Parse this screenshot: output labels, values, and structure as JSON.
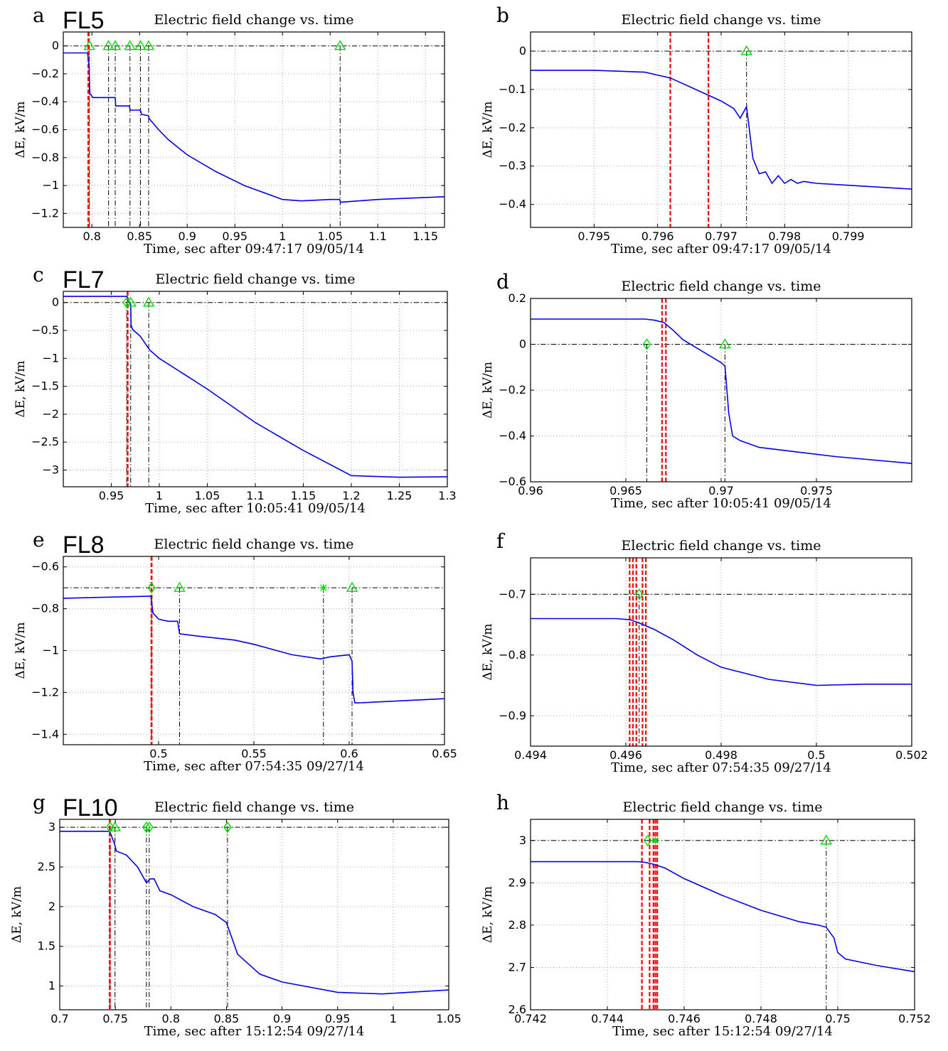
{
  "colors": {
    "signal": "#0000ee",
    "marker": "#00dd00",
    "red_marker": "#ff0000",
    "reference": "#000000",
    "grid": "#999999"
  },
  "chart_data": [
    {
      "panel": "a",
      "flash": "FL5",
      "type": "line",
      "title": "Electric field change vs. time",
      "xlabel": "Time, sec after 09:47:17  09/05/14",
      "ylabel": "ΔE,  kV/m",
      "xlim": [
        0.77,
        1.17
      ],
      "ylim": [
        -1.3,
        0.1
      ],
      "xticks": [
        0.8,
        0.85,
        0.9,
        0.95,
        1,
        1.05,
        1.1,
        1.15
      ],
      "xtick_labels": [
        "0.8",
        "0.85",
        "0.9",
        "0.95",
        "1",
        "1.05",
        "1.1",
        "1.15"
      ],
      "yticks": [
        -1.2,
        -1,
        -0.8,
        -0.6,
        -0.4,
        -0.2,
        0
      ],
      "ytick_labels": [
        "−1.2",
        "−1",
        "−0.8",
        "−0.6",
        "−0.4",
        "−0.2",
        "0"
      ],
      "grid": true,
      "reference_y": 0,
      "red_lines": [
        0.7962,
        0.7968
      ],
      "black_lines": [
        0.7974,
        0.8175,
        0.8245,
        0.84,
        0.851,
        0.8595,
        1.0605
      ],
      "markers": [
        {
          "x": 0.7974,
          "y": 0,
          "shape": "triangle"
        },
        {
          "x": 0.8175,
          "y": 0,
          "shape": "triangle"
        },
        {
          "x": 0.8245,
          "y": 0,
          "shape": "triangle"
        },
        {
          "x": 0.84,
          "y": 0,
          "shape": "triangle"
        },
        {
          "x": 0.851,
          "y": 0,
          "shape": "triangle"
        },
        {
          "x": 0.8595,
          "y": 0,
          "shape": "triangle"
        },
        {
          "x": 1.0605,
          "y": 0,
          "shape": "triangle"
        }
      ],
      "x": [
        0.77,
        0.7955,
        0.7972,
        0.7976,
        0.798,
        0.801,
        0.81,
        0.8245,
        0.825,
        0.83,
        0.8395,
        0.84,
        0.845,
        0.851,
        0.852,
        0.8595,
        0.86,
        0.87,
        0.88,
        0.9,
        0.93,
        0.96,
        1.0,
        1.02,
        1.05,
        1.06,
        1.061,
        1.1,
        1.17
      ],
      "y": [
        -0.05,
        -0.05,
        -0.15,
        -0.3,
        -0.34,
        -0.37,
        -0.37,
        -0.37,
        -0.43,
        -0.43,
        -0.43,
        -0.46,
        -0.46,
        -0.46,
        -0.49,
        -0.5,
        -0.52,
        -0.6,
        -0.67,
        -0.78,
        -0.9,
        -1.0,
        -1.1,
        -1.11,
        -1.1,
        -1.1,
        -1.12,
        -1.1,
        -1.08
      ]
    },
    {
      "panel": "b",
      "type": "line",
      "title": "Electric field change vs. time",
      "xlabel": "Time, sec after 09:47:17  09/05/14",
      "ylabel": "ΔE,  kV/m",
      "xlim": [
        0.794,
        0.8
      ],
      "ylim": [
        -0.46,
        0.05
      ],
      "xticks": [
        0.795,
        0.796,
        0.797,
        0.798,
        0.799
      ],
      "xtick_labels": [
        "0.795",
        "0.796",
        "0.797",
        "0.798",
        "0.799"
      ],
      "yticks": [
        -0.4,
        -0.3,
        -0.2,
        -0.1,
        0
      ],
      "ytick_labels": [
        "−0.4",
        "−0.3",
        "−0.2",
        "−0.1",
        "0"
      ],
      "grid": true,
      "reference_y": 0,
      "red_lines": [
        0.7962,
        0.7968
      ],
      "black_lines": [
        0.7974
      ],
      "markers": [
        {
          "x": 0.7974,
          "y": 0,
          "shape": "triangle"
        }
      ],
      "x": [
        0.794,
        0.795,
        0.7958,
        0.7962,
        0.7966,
        0.7968,
        0.797,
        0.7972,
        0.7973,
        0.7974,
        0.7975,
        0.7976,
        0.7977,
        0.7978,
        0.7979,
        0.798,
        0.7981,
        0.7982,
        0.7983,
        0.7985,
        0.799,
        0.8
      ],
      "y": [
        -0.05,
        -0.05,
        -0.055,
        -0.07,
        -0.1,
        -0.115,
        -0.13,
        -0.15,
        -0.175,
        -0.145,
        -0.28,
        -0.32,
        -0.315,
        -0.345,
        -0.325,
        -0.345,
        -0.335,
        -0.345,
        -0.34,
        -0.345,
        -0.35,
        -0.36
      ]
    },
    {
      "panel": "c",
      "flash": "FL7",
      "type": "line",
      "title": "Electric field change vs. time",
      "xlabel": "Time, sec after 10:05:41  09/05/14",
      "ylabel": "ΔE,  kV/m",
      "xlim": [
        0.9,
        1.3
      ],
      "ylim": [
        -3.3,
        0.2
      ],
      "xticks": [
        0.95,
        1,
        1.05,
        1.1,
        1.15,
        1.2,
        1.25,
        1.3
      ],
      "xtick_labels": [
        "0.95",
        "1",
        "1.05",
        "1.1",
        "1.15",
        "1.2",
        "1.25",
        "1.3"
      ],
      "yticks": [
        -3,
        -2.5,
        -2,
        -1.5,
        -1,
        -0.5,
        0
      ],
      "ytick_labels": [
        "−3",
        "−2.5",
        "−2",
        "−1.5",
        "−1",
        "−0.5",
        "0"
      ],
      "grid": true,
      "reference_y": 0,
      "red_lines": [
        0.9669,
        0.9671
      ],
      "black_lines": [
        0.9661,
        0.9702,
        0.989
      ],
      "markers": [
        {
          "x": 0.9661,
          "y": 0,
          "shape": "diamond"
        },
        {
          "x": 0.9702,
          "y": 0,
          "shape": "triangle"
        },
        {
          "x": 0.989,
          "y": 0,
          "shape": "triangle"
        }
      ],
      "x": [
        0.9,
        0.9665,
        0.9702,
        0.9706,
        0.972,
        0.98,
        0.99,
        1.0,
        1.05,
        1.1,
        1.15,
        1.2,
        1.25,
        1.3
      ],
      "y": [
        0.11,
        0.11,
        -0.05,
        -0.4,
        -0.48,
        -0.6,
        -0.85,
        -1.0,
        -1.55,
        -2.15,
        -2.65,
        -3.1,
        -3.13,
        -3.12
      ]
    },
    {
      "panel": "d",
      "type": "line",
      "title": "Electric field change vs. time",
      "xlabel": "Time, sec after 10:05:41  09/05/14",
      "ylabel": "ΔE,  kV/m",
      "xlim": [
        0.96,
        0.98
      ],
      "ylim": [
        -0.6,
        0.2
      ],
      "xticks": [
        0.96,
        0.965,
        0.97,
        0.975
      ],
      "xtick_labels": [
        "0.96",
        "0.965",
        "0.97",
        "0.975"
      ],
      "yticks": [
        -0.6,
        -0.4,
        -0.2,
        0,
        0.2
      ],
      "ytick_labels": [
        "−0.6",
        "−0.4",
        "−0.2",
        "0",
        "0.2"
      ],
      "grid": true,
      "reference_y": 0,
      "red_lines": [
        0.9669,
        0.9671
      ],
      "black_lines": [
        0.9661,
        0.9702
      ],
      "markers": [
        {
          "x": 0.9661,
          "y": 0,
          "shape": "diamond"
        },
        {
          "x": 0.9702,
          "y": 0,
          "shape": "triangle"
        }
      ],
      "x": [
        0.96,
        0.966,
        0.9665,
        0.967,
        0.9675,
        0.968,
        0.969,
        0.97,
        0.9702,
        0.9704,
        0.9706,
        0.971,
        0.972,
        0.974,
        0.976,
        0.98
      ],
      "y": [
        0.11,
        0.11,
        0.105,
        0.095,
        0.06,
        0.02,
        -0.03,
        -0.08,
        -0.095,
        -0.3,
        -0.4,
        -0.42,
        -0.45,
        -0.47,
        -0.49,
        -0.52
      ]
    },
    {
      "panel": "e",
      "flash": "FL8",
      "type": "line",
      "title": "Electric field change vs. time",
      "xlabel": "Time, sec after 07:54:35  09/27/14",
      "ylabel": "ΔE,  kV/m",
      "xlim": [
        0.45,
        0.65
      ],
      "ylim": [
        -1.45,
        -0.55
      ],
      "xticks": [
        0.5,
        0.55,
        0.6,
        0.65
      ],
      "xtick_labels": [
        "0.5",
        "0.55",
        "0.6",
        "0.65"
      ],
      "yticks": [
        -1.4,
        -1.2,
        -1,
        -0.8,
        -0.6
      ],
      "ytick_labels": [
        "−1.4",
        "−1.2",
        "−1",
        "−0.8",
        "−0.6"
      ],
      "grid": true,
      "reference_y": -0.7,
      "red_lines": [
        0.4962,
        0.4964
      ],
      "black_lines": [
        0.4963,
        0.511,
        0.5865,
        0.6015
      ],
      "markers": [
        {
          "x": 0.4963,
          "y": -0.7,
          "shape": "diamond"
        },
        {
          "x": 0.511,
          "y": -0.7,
          "shape": "triangle"
        },
        {
          "x": 0.5865,
          "y": -0.7,
          "shape": "star"
        },
        {
          "x": 0.6015,
          "y": -0.7,
          "shape": "triangle"
        }
      ],
      "x": [
        0.45,
        0.496,
        0.4965,
        0.497,
        0.5,
        0.505,
        0.51,
        0.511,
        0.52,
        0.54,
        0.55,
        0.57,
        0.585,
        0.59,
        0.6,
        0.6015,
        0.602,
        0.603,
        0.605,
        0.65
      ],
      "y": [
        -0.75,
        -0.74,
        -0.78,
        -0.82,
        -0.85,
        -0.86,
        -0.86,
        -0.92,
        -0.93,
        -0.95,
        -0.97,
        -1.02,
        -1.04,
        -1.03,
        -1.02,
        -1.05,
        -1.2,
        -1.25,
        -1.25,
        -1.23
      ]
    },
    {
      "panel": "f",
      "type": "line",
      "title": "Electric field change vs. time",
      "xlabel": "Time, sec after 07:54:35  09/27/14",
      "ylabel": "ΔE,  kV/m",
      "xlim": [
        0.494,
        0.502
      ],
      "ylim": [
        -0.95,
        -0.64
      ],
      "xticks": [
        0.494,
        0.496,
        0.498,
        0.5,
        0.502
      ],
      "xtick_labels": [
        "0.494",
        "0.496",
        "0.498",
        "0.5",
        "0.502"
      ],
      "yticks": [
        -0.9,
        -0.8,
        -0.7
      ],
      "ytick_labels": [
        "−0.9",
        "−0.8",
        "−0.7"
      ],
      "grid": true,
      "reference_y": -0.7,
      "red_lines": [
        0.49608,
        0.49615,
        0.49622,
        0.49635,
        0.49642
      ],
      "black_lines": [
        0.49628
      ],
      "markers": [
        {
          "x": 0.49628,
          "y": -0.7,
          "shape": "diamond"
        }
      ],
      "x": [
        0.494,
        0.4958,
        0.4961,
        0.4963,
        0.4966,
        0.497,
        0.4975,
        0.498,
        0.499,
        0.5,
        0.501,
        0.502
      ],
      "y": [
        -0.74,
        -0.74,
        -0.742,
        -0.748,
        -0.758,
        -0.775,
        -0.8,
        -0.82,
        -0.84,
        -0.85,
        -0.848,
        -0.848
      ]
    },
    {
      "panel": "g",
      "flash": "FL10",
      "type": "line",
      "title": "Electric field change vs. time",
      "xlabel": "Time, sec after 15:12:54  09/27/14",
      "ylabel": "ΔE,  kV/m",
      "xlim": [
        0.7,
        1.05
      ],
      "ylim": [
        0.7,
        3.1
      ],
      "xticks": [
        0.7,
        0.75,
        0.8,
        0.85,
        0.9,
        0.95,
        1,
        1.05
      ],
      "xtick_labels": [
        "0.7",
        "0.75",
        "0.8",
        "0.85",
        "0.9",
        "0.95",
        "1",
        "1.05"
      ],
      "yticks": [
        1,
        1.5,
        2,
        2.5,
        3
      ],
      "ytick_labels": [
        "1",
        "1.5",
        "2",
        "2.5",
        "3"
      ],
      "grid": true,
      "reference_y": 3,
      "red_lines": [
        0.7449,
        0.7452
      ],
      "black_lines": [
        0.7453,
        0.7497,
        0.778,
        0.7805,
        0.851
      ],
      "markers": [
        {
          "x": 0.7453,
          "y": 3,
          "shape": "diamond"
        },
        {
          "x": 0.7497,
          "y": 3,
          "shape": "triangle"
        },
        {
          "x": 0.778,
          "y": 3,
          "shape": "diamond"
        },
        {
          "x": 0.7805,
          "y": 3,
          "shape": "diamond"
        },
        {
          "x": 0.851,
          "y": 3,
          "shape": "diamond"
        }
      ],
      "x": [
        0.7,
        0.7448,
        0.7455,
        0.749,
        0.751,
        0.76,
        0.77,
        0.778,
        0.7795,
        0.781,
        0.785,
        0.79,
        0.8,
        0.82,
        0.84,
        0.85,
        0.86,
        0.88,
        0.9,
        0.95,
        0.99,
        1.05
      ],
      "y": [
        2.95,
        2.95,
        2.93,
        2.8,
        2.7,
        2.65,
        2.5,
        2.3,
        2.32,
        2.35,
        2.35,
        2.2,
        2.15,
        2.0,
        1.9,
        1.8,
        1.4,
        1.15,
        1.05,
        0.92,
        0.9,
        0.95
      ]
    },
    {
      "panel": "h",
      "type": "line",
      "title": "Electric field change vs. time",
      "xlabel": "Time, sec after 15:12:54  09/27/14",
      "ylabel": "ΔE,  kV/m",
      "xlim": [
        0.742,
        0.752
      ],
      "ylim": [
        2.6,
        3.05
      ],
      "xticks": [
        0.742,
        0.744,
        0.746,
        0.748,
        0.75,
        0.752
      ],
      "xtick_labels": [
        "0.742",
        "0.744",
        "0.746",
        "0.748",
        "0.75",
        "0.752"
      ],
      "yticks": [
        2.6,
        2.7,
        2.8,
        2.9,
        3
      ],
      "ytick_labels": [
        "2.6",
        "2.7",
        "2.8",
        "2.9",
        "3"
      ],
      "grid": true,
      "reference_y": 3,
      "red_lines": [
        0.7449,
        0.7451,
        0.7452,
        0.74525,
        0.7453
      ],
      "black_lines": [
        0.7497
      ],
      "markers": [
        {
          "x": 0.74505,
          "y": 3,
          "shape": "diamond"
        },
        {
          "x": 0.74525,
          "y": 3,
          "shape": "star"
        },
        {
          "x": 0.7497,
          "y": 3,
          "shape": "triangle"
        }
      ],
      "x": [
        0.742,
        0.7448,
        0.745,
        0.7452,
        0.7455,
        0.746,
        0.747,
        0.748,
        0.749,
        0.7495,
        0.7497,
        0.7499,
        0.75,
        0.7502,
        0.751,
        0.752
      ],
      "y": [
        2.95,
        2.95,
        2.948,
        2.944,
        2.935,
        2.91,
        2.87,
        2.835,
        2.808,
        2.8,
        2.795,
        2.77,
        2.735,
        2.72,
        2.705,
        2.69
      ]
    }
  ]
}
